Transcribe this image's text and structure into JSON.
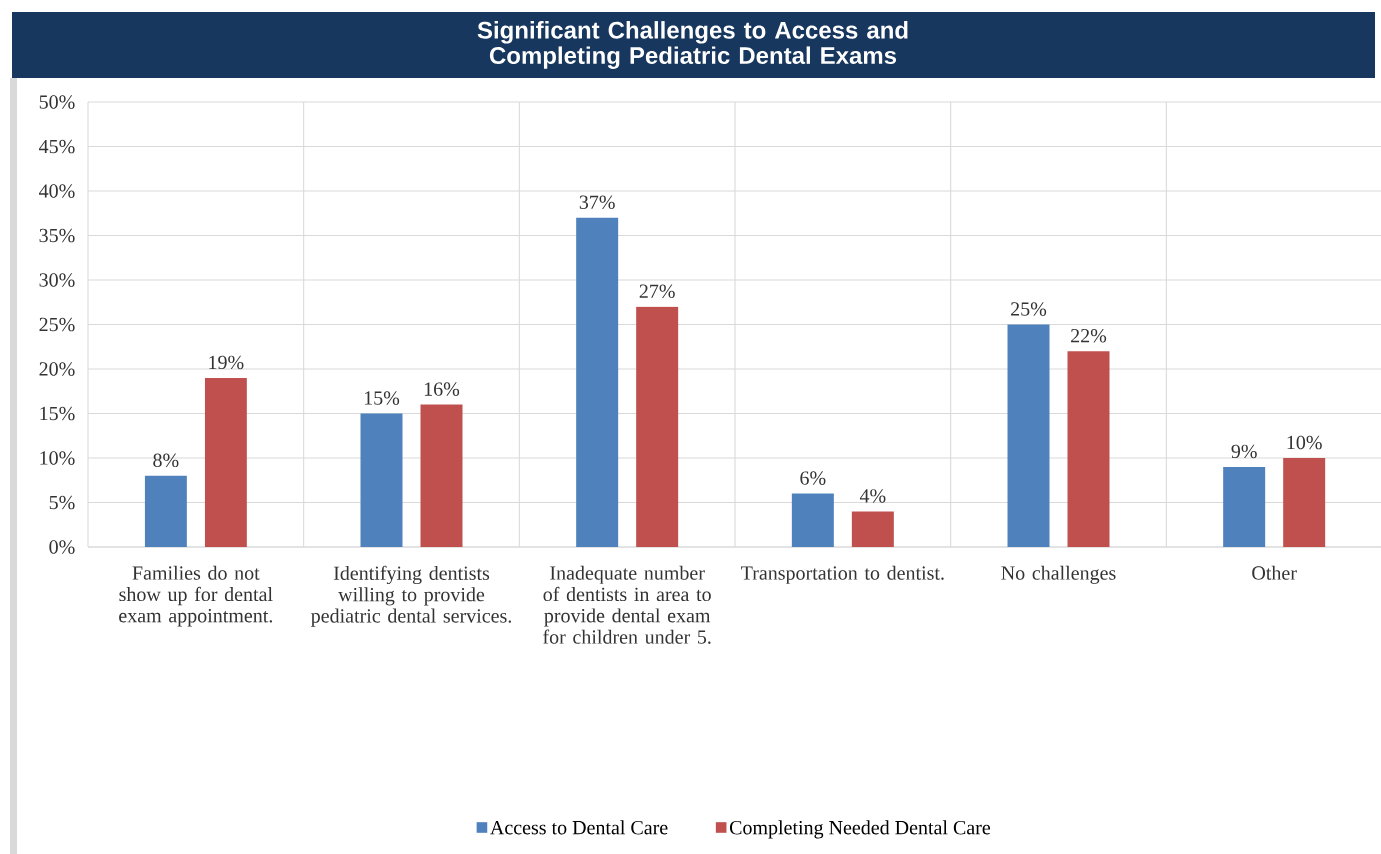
{
  "chart_data": {
    "type": "bar",
    "title": "Significant Challenges to Access and Completing Pediatric Dental Exams",
    "categories": [
      "Families do not show up for dental exam appointment.",
      "Identifying dentists willing to provide pediatric dental services.",
      "Inadequate number of dentists in area to provide dental exam for children under 5.",
      "Transportation to dentist.",
      "No challenges",
      "Other"
    ],
    "series": [
      {
        "name": "Access to Dental Care",
        "color": "#4f81bd",
        "values": [
          8,
          15,
          37,
          6,
          25,
          9
        ],
        "value_labels": [
          "8%",
          "15%",
          "37%",
          "6%",
          "25%",
          "9%"
        ]
      },
      {
        "name": "Completing Needed Dental Care",
        "color": "#c0504d",
        "values": [
          19,
          16,
          27,
          4,
          22,
          10
        ],
        "value_labels": [
          "19%",
          "16%",
          "27%",
          "4%",
          "22%",
          "10%"
        ]
      }
    ],
    "ylim": [
      0,
      50
    ],
    "yticks": [
      {
        "value": 0,
        "label": "0%"
      },
      {
        "value": 5,
        "label": "5%"
      },
      {
        "value": 10,
        "label": "10%"
      },
      {
        "value": 15,
        "label": "15%"
      },
      {
        "value": 20,
        "label": "20%"
      },
      {
        "value": 25,
        "label": "25%"
      },
      {
        "value": 30,
        "label": "30%"
      },
      {
        "value": 35,
        "label": "35%"
      },
      {
        "value": 40,
        "label": "40%"
      },
      {
        "value": 45,
        "label": "45%"
      },
      {
        "value": 50,
        "label": "50%"
      }
    ],
    "grid": true,
    "legend": "bottom"
  }
}
